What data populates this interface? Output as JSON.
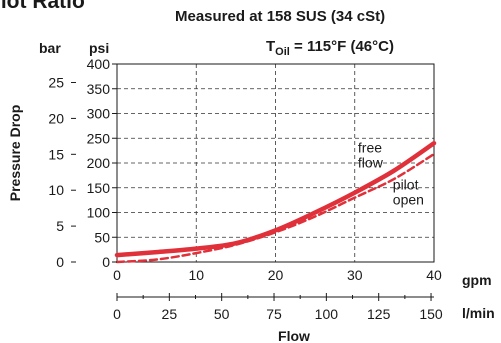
{
  "page": {
    "title_fragment": "ilot Ratio"
  },
  "chart_data": {
    "type": "line",
    "subtitle": "Measured at 158 SUS  (34 cSt)",
    "temperature": {
      "symbol": "T",
      "subscript": "Oil",
      "value": " = 115°F  (46°C)"
    },
    "xlabel": "Flow",
    "ylabel": "Pressure Drop",
    "x_unit_primary": "gpm",
    "x_unit_secondary": "l/min",
    "y_unit_primary": "psi",
    "y_unit_secondary": "bar",
    "xlim": [
      0,
      40
    ],
    "ylim": [
      0,
      400
    ],
    "x_ticks_gpm": [
      "0",
      "10",
      "20",
      "30",
      "40"
    ],
    "x_ticks_lmin": [
      "0",
      "25",
      "50",
      "75",
      "100",
      "125",
      "150"
    ],
    "y_ticks_psi": [
      "0",
      "50",
      "100",
      "150",
      "200",
      "250",
      "300",
      "350",
      "400"
    ],
    "y_ticks_bar": [
      "0",
      "5",
      "10",
      "15",
      "20",
      "25"
    ],
    "grid": true,
    "series": [
      {
        "name": "free flow",
        "style": "solid",
        "color": "#e0303a",
        "x": [
          0,
          5,
          10,
          15,
          20,
          25,
          30,
          35,
          40
        ],
        "y": [
          14,
          20,
          27,
          38,
          64,
          100,
          140,
          185,
          240
        ]
      },
      {
        "name": "pilot open",
        "style": "dashed",
        "color": "#e0303a",
        "x": [
          0,
          5,
          10,
          15,
          20,
          25,
          30,
          35,
          40
        ],
        "y": [
          0,
          5,
          18,
          35,
          60,
          92,
          130,
          168,
          218
        ]
      }
    ],
    "series_labels": [
      {
        "lines": [
          "free",
          "flow"
        ],
        "x": 30.4,
        "y": 221
      },
      {
        "lines": [
          "pilot",
          "open"
        ],
        "x": 34.8,
        "y": 146
      }
    ]
  }
}
